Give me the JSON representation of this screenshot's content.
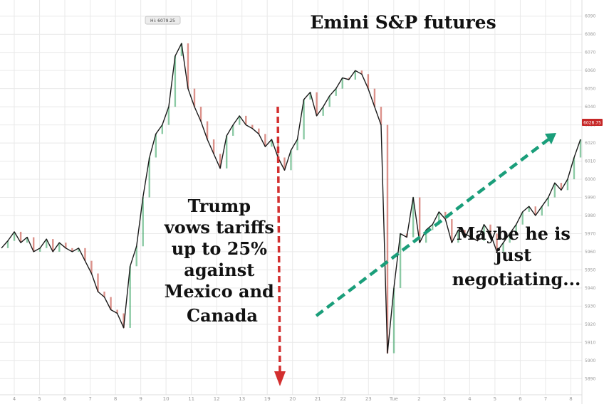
{
  "chart_data": {
    "type": "line",
    "title": "Emini S&P futures",
    "x_tick_labels": [
      "4",
      "5",
      "6",
      "7",
      "8",
      "9",
      "10",
      "11",
      "12",
      "13",
      "19",
      "20",
      "21",
      "22",
      "23",
      "Tue",
      "2",
      "3",
      "4",
      "5",
      "6",
      "7",
      "8"
    ],
    "y_tick_labels": [
      "6090",
      "6080",
      "6070",
      "6060",
      "6050",
      "6040",
      "6030",
      "6020",
      "6010",
      "6000",
      "5990",
      "5980",
      "5970",
      "5960",
      "5950",
      "5940",
      "5930",
      "5920",
      "5910",
      "5900",
      "5890"
    ],
    "ylim": [
      5885,
      6095
    ],
    "series": [
      {
        "color": "#1a1a1a",
        "x": [
          0,
          0.5,
          1,
          1.5,
          2,
          2.5,
          3,
          3.5,
          4,
          4.5,
          5,
          5.5,
          6,
          6.5,
          7,
          7.5,
          8,
          8.5,
          9,
          9.5,
          10,
          10.5,
          11,
          11.5,
          12,
          12.5,
          13,
          13.5,
          14,
          14.5,
          15,
          15.5,
          16,
          16.5,
          17,
          17.5,
          18,
          18.5,
          19,
          19.5,
          20,
          20.5,
          21,
          21.5,
          22,
          22.5,
          23,
          23.5,
          24,
          24.5,
          25,
          25.5,
          26,
          26.5,
          27,
          27.5,
          28,
          28.5,
          29,
          29.5,
          30,
          30.5,
          31,
          31.5,
          32,
          32.5,
          33,
          33.5,
          34,
          34.5,
          35,
          35.5,
          36,
          36.5,
          37,
          37.5,
          38,
          38.5,
          39,
          39.5,
          40,
          40.5,
          41,
          41.5,
          42,
          42.5,
          43,
          43.5,
          44,
          44.5,
          45
        ],
        "y": [
          5962,
          5966,
          5971,
          5965,
          5968,
          5960,
          5962,
          5967,
          5960,
          5965,
          5962,
          5960,
          5962,
          5955,
          5948,
          5938,
          5935,
          5928,
          5926,
          5918,
          5952,
          5963,
          5990,
          6012,
          6025,
          6030,
          6040,
          6068,
          6075,
          6050,
          6040,
          6032,
          6022,
          6014,
          6006,
          6024,
          6030,
          6035,
          6030,
          6028,
          6025,
          6018,
          6022,
          6012,
          6005,
          6016,
          6022,
          6044,
          6048,
          6035,
          6040,
          6046,
          6050,
          6056,
          6055,
          6060,
          6058,
          6050,
          6040,
          6030,
          5904,
          5940,
          5970,
          5968,
          5990,
          5965,
          5972,
          5975,
          5982,
          5978,
          5965,
          5972,
          5970,
          5968,
          5966,
          5975,
          5970,
          5960,
          5965,
          5970,
          5975,
          5982,
          5985,
          5980,
          5985,
          5990,
          5998,
          5994,
          6000,
          6012,
          6022
        ]
      }
    ],
    "annotations": [
      {
        "text_lines": [
          "Trump",
          "vows tariffs",
          "up to 25%",
          "against",
          "Mexico and",
          "Canada"
        ]
      },
      {
        "text_lines": [
          "Maybe he is",
          "just",
          "negotiating..."
        ]
      }
    ],
    "high_marker_label": "Hi: 6079.25",
    "last_price_label": "6028.75",
    "colors": {
      "price": "#1a1a1a",
      "red_arrow": "#d32f2f",
      "green_arrow": "#1a9e7a",
      "bull_candle": "#2e9e5b",
      "bear_candle": "#c0392b"
    },
    "grid": true
  }
}
